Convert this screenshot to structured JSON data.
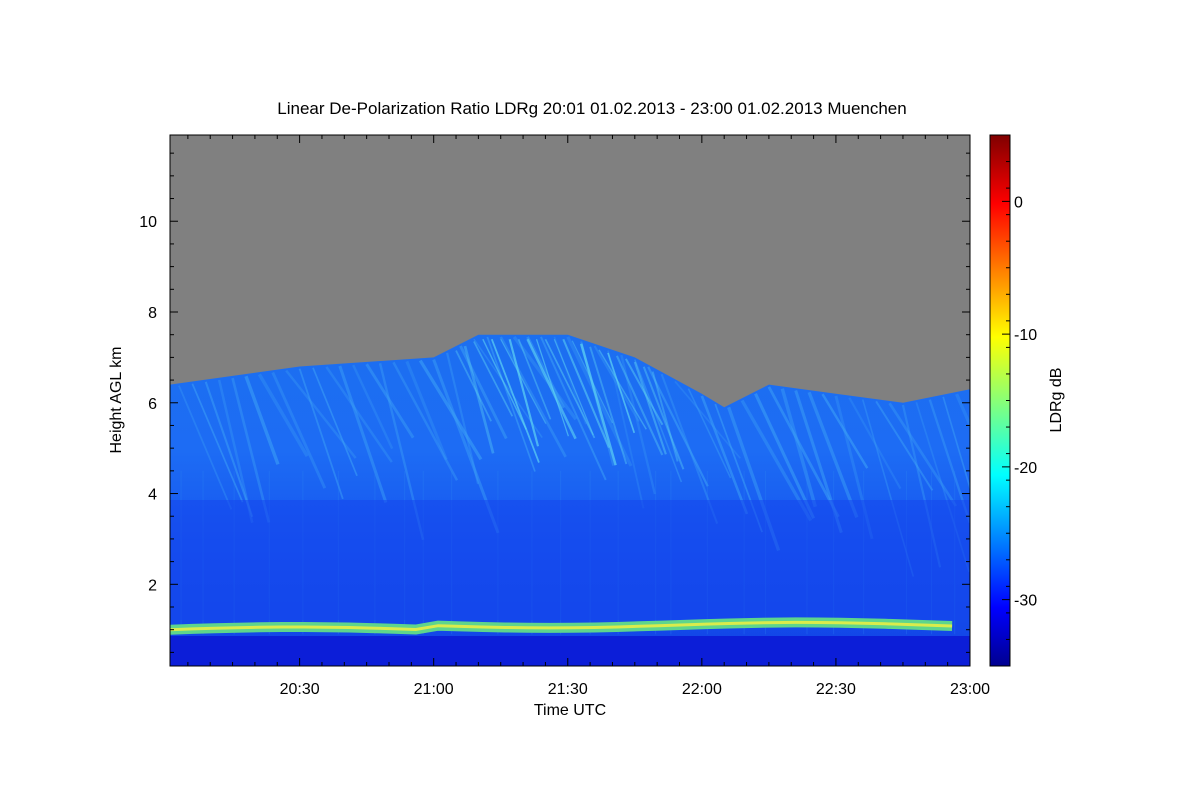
{
  "chart_data": {
    "type": "heatmap",
    "title": "Linear De-Polarization Ratio LDRg   20:01 01.02.2013 - 23:00 01.02.2013 Muenchen",
    "xlabel": "Time UTC",
    "ylabel": "Height AGL km",
    "colorbar_label": "LDRg dB",
    "x_range": [
      "20:01",
      "23:00"
    ],
    "x_ticks": [
      "20:30",
      "21:00",
      "21:30",
      "22:00",
      "22:30",
      "23:00"
    ],
    "y_range": [
      0.2,
      11.9
    ],
    "y_ticks": [
      "2",
      "4",
      "6",
      "8",
      "10"
    ],
    "color_range": [
      -35,
      5
    ],
    "color_ticks": [
      "0",
      "-10",
      "-20",
      "-30"
    ],
    "no_signal_color": "#808080",
    "colormap": "jet",
    "grid": false,
    "features": [
      {
        "name": "aerosol layer top",
        "height_km": 1.0,
        "ldr_db": -17
      },
      {
        "name": "ice cloud base / top",
        "height_km_range": [
          4.0,
          7.6
        ],
        "ldr_db_range": [
          -30,
          -18
        ]
      },
      {
        "name": "signal top",
        "time_height_km": [
          [
            "20:01",
            6.4
          ],
          [
            "20:30",
            6.8
          ],
          [
            "21:00",
            7.0
          ],
          [
            "21:10",
            7.5
          ],
          [
            "21:30",
            7.5
          ],
          [
            "21:45",
            7.0
          ],
          [
            "22:00",
            6.2
          ],
          [
            "22:05",
            5.9
          ],
          [
            "22:15",
            6.4
          ],
          [
            "22:30",
            6.2
          ],
          [
            "22:45",
            6.0
          ],
          [
            "23:00",
            6.3
          ]
        ]
      }
    ]
  }
}
